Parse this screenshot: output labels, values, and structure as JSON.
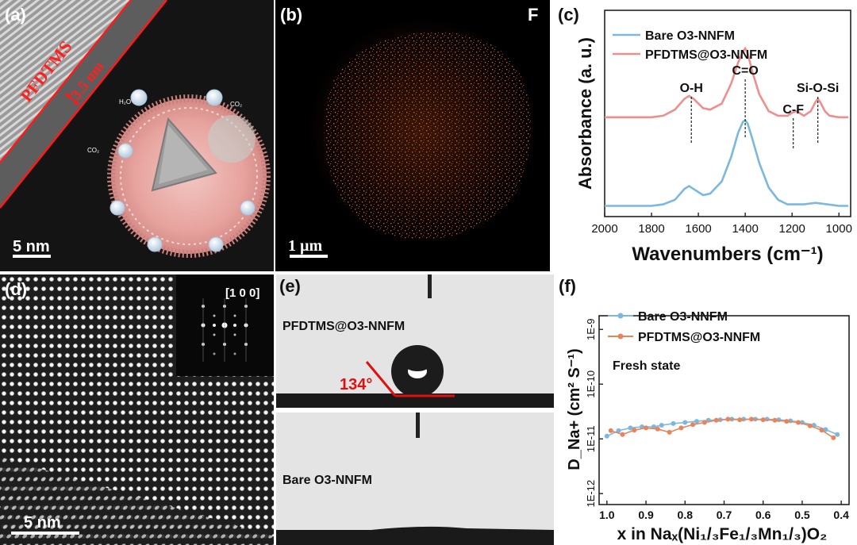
{
  "panel_a": {
    "label": "(a)",
    "coating_label": "PFDTMS",
    "thickness_label": "3.5 nm",
    "scale_bar": "5 nm",
    "molecules": [
      "H₂O",
      "CO₂",
      "CO₂"
    ]
  },
  "panel_b": {
    "label": "(b)",
    "element": "F",
    "scale_bar": "1 µm",
    "map_color": "#c0501a"
  },
  "panel_c": {
    "label": "(c)",
    "chart_data": {
      "type": "line",
      "xlabel": "Wavenumbers (cm⁻¹)",
      "ylabel": "Absorbance (a. u.)",
      "x_range": [
        2000,
        950
      ],
      "x_ticks": [
        "2000",
        "1800",
        "1600",
        "1400",
        "1200",
        "1000"
      ],
      "legend": "top-left",
      "series": [
        {
          "name": "Bare O3-NNFM",
          "color": "#7ab8e0",
          "x": [
            2000,
            1900,
            1800,
            1750,
            1700,
            1660,
            1640,
            1620,
            1580,
            1550,
            1500,
            1460,
            1430,
            1410,
            1400,
            1390,
            1370,
            1340,
            1300,
            1260,
            1220,
            1200,
            1150,
            1100,
            1050,
            1000,
            960
          ],
          "y": [
            0.02,
            0.02,
            0.02,
            0.03,
            0.06,
            0.13,
            0.15,
            0.13,
            0.09,
            0.1,
            0.18,
            0.34,
            0.5,
            0.57,
            0.58,
            0.56,
            0.46,
            0.3,
            0.14,
            0.06,
            0.03,
            0.03,
            0.03,
            0.04,
            0.03,
            0.02,
            0.02
          ]
        },
        {
          "name": "PFDTMS@O3-NNFM",
          "color": "#ee8f8f",
          "x": [
            2000,
            1900,
            1800,
            1750,
            1700,
            1660,
            1640,
            1620,
            1580,
            1550,
            1500,
            1460,
            1430,
            1410,
            1400,
            1390,
            1370,
            1340,
            1300,
            1260,
            1220,
            1200,
            1180,
            1150,
            1120,
            1100,
            1090,
            1080,
            1060,
            1040,
            1000,
            960
          ],
          "y": [
            0.6,
            0.6,
            0.6,
            0.61,
            0.65,
            0.72,
            0.74,
            0.72,
            0.66,
            0.65,
            0.69,
            0.82,
            0.96,
            1.03,
            1.05,
            1.02,
            0.9,
            0.75,
            0.64,
            0.61,
            0.61,
            0.63,
            0.64,
            0.61,
            0.64,
            0.7,
            0.72,
            0.7,
            0.64,
            0.61,
            0.6,
            0.6
          ]
        }
      ],
      "annotations": [
        {
          "text": "O-H",
          "x": 1630
        },
        {
          "text": "C=O",
          "x": 1400
        },
        {
          "text": "C-F",
          "x": 1195
        },
        {
          "text": "Si-O-Si",
          "x": 1090
        }
      ]
    }
  },
  "panel_d": {
    "label": "(d)",
    "fft_label": "[1 0 0]",
    "scale_bar": "5 nm"
  },
  "panel_e": {
    "label": "(e)",
    "top_sample": "PFDTMS@O3-NNFM",
    "angle": "134°",
    "bottom_sample": "Bare O3-NNFM"
  },
  "panel_f": {
    "label": "(f)",
    "chart_data": {
      "type": "line",
      "xlabel": "x in Naₓ(Ni₁/₃Fe₁/₃Mn₁/₃)O₂",
      "ylabel": "D_Na+ (cm² S⁻¹)",
      "x_range": [
        1.0,
        0.4
      ],
      "x_ticks": [
        "1.0",
        "0.9",
        "0.8",
        "0.7",
        "0.6",
        "0.5",
        "0.4"
      ],
      "y_scale": "log",
      "y_ticks": [
        "1E-9",
        "1E-10",
        "1E-11",
        "1E-12"
      ],
      "annotation": "Fresh state",
      "legend": "top-left",
      "series": [
        {
          "name": "Bare O3-NNFM",
          "color": "#7ab8e0",
          "x": [
            1.0,
            0.97,
            0.94,
            0.91,
            0.88,
            0.86,
            0.83,
            0.8,
            0.77,
            0.74,
            0.71,
            0.68,
            0.65,
            0.62,
            0.59,
            0.56,
            0.53,
            0.5,
            0.47,
            0.44,
            0.41
          ],
          "y": [
            -10.95,
            -10.85,
            -10.8,
            -10.78,
            -10.78,
            -10.75,
            -10.72,
            -10.7,
            -10.68,
            -10.66,
            -10.65,
            -10.64,
            -10.64,
            -10.64,
            -10.64,
            -10.65,
            -10.67,
            -10.7,
            -10.75,
            -10.83,
            -10.92
          ]
        },
        {
          "name": "PFDTMS@O3-NNFM",
          "color": "#e8845c",
          "x": [
            0.99,
            0.96,
            0.93,
            0.9,
            0.87,
            0.84,
            0.81,
            0.78,
            0.75,
            0.72,
            0.69,
            0.66,
            0.63,
            0.6,
            0.57,
            0.54,
            0.51,
            0.48,
            0.45,
            0.42
          ],
          "y": [
            -10.85,
            -10.92,
            -10.84,
            -10.8,
            -10.82,
            -10.88,
            -10.8,
            -10.74,
            -10.7,
            -10.66,
            -10.64,
            -10.65,
            -10.64,
            -10.65,
            -10.66,
            -10.68,
            -10.7,
            -10.76,
            -10.84,
            -10.98
          ]
        }
      ]
    }
  }
}
